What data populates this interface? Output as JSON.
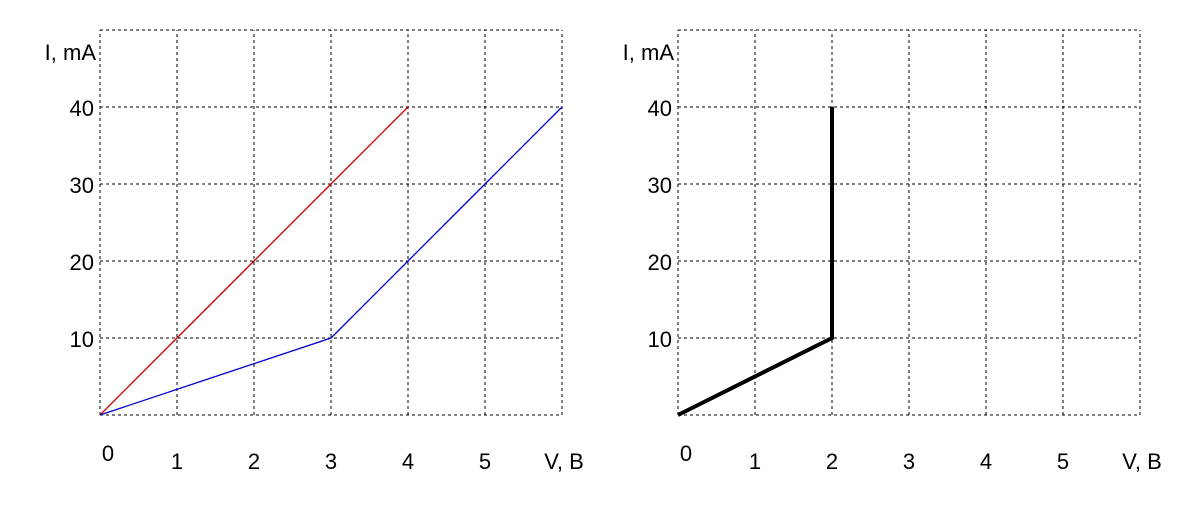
{
  "chart_data": [
    {
      "type": "line",
      "ylabel": "I, mA",
      "xlabel": "V, B",
      "x_ticks": [
        "0",
        "1",
        "2",
        "3",
        "4",
        "5"
      ],
      "y_ticks": [
        "10",
        "20",
        "30",
        "40"
      ],
      "xlim": [
        0,
        6
      ],
      "ylim": [
        0,
        50
      ],
      "grid": true,
      "series": [
        {
          "color": "#cc0000",
          "points": [
            [
              0,
              0
            ],
            [
              1,
              10
            ],
            [
              2,
              20
            ],
            [
              3,
              30
            ],
            [
              4,
              40
            ]
          ]
        },
        {
          "color": "#0000cc",
          "points": [
            [
              0,
              0
            ],
            [
              3,
              10
            ],
            [
              4,
              20
            ],
            [
              5,
              30
            ],
            [
              6,
              40
            ]
          ]
        }
      ]
    },
    {
      "type": "line",
      "ylabel": "I, mA",
      "xlabel": "V, B",
      "x_ticks": [
        "0",
        "1",
        "2",
        "3",
        "4",
        "5"
      ],
      "y_ticks": [
        "10",
        "20",
        "30",
        "40"
      ],
      "xlim": [
        0,
        6
      ],
      "ylim": [
        0,
        50
      ],
      "grid": true,
      "series": [
        {
          "color": "#000000",
          "points": [
            [
              0,
              0
            ],
            [
              2,
              10
            ],
            [
              2,
              40
            ]
          ]
        }
      ]
    }
  ]
}
